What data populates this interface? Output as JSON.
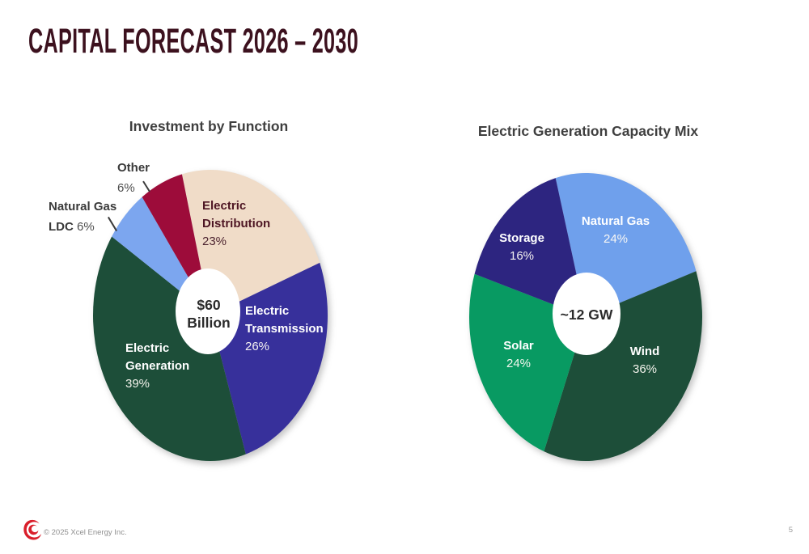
{
  "title": "CAPITAL FORECAST 2026 – 2030",
  "colors": {
    "title_maroon": "#3C111E",
    "chart_title_gray": "#3F3F3F",
    "logo_red": "#D91F2B"
  },
  "chart_data": [
    {
      "type": "pie",
      "title": "Investment by Function",
      "center_label": "$60 Billion",
      "center_label_lines": [
        "$60",
        "Billion"
      ],
      "start_angle_deg": -14,
      "legend_position": "labels-on-chart",
      "slices": [
        {
          "label": "Electric Distribution",
          "label_lines": [
            "Electric",
            "Distribution"
          ],
          "pct": 23,
          "pct_label": "23%",
          "color": "#F0DCC8"
        },
        {
          "label": "Electric Transmission",
          "label_lines": [
            "Electric",
            "Transmission"
          ],
          "pct": 26,
          "pct_label": "26%",
          "color": "#37309B"
        },
        {
          "label": "Electric Generation",
          "label_lines": [
            "Electric",
            "Generation"
          ],
          "pct": 39,
          "pct_label": "39%",
          "color": "#1D4E39"
        },
        {
          "label": "Natural Gas LDC",
          "label_lines": [
            "Natural Gas",
            "LDC"
          ],
          "pct": 6,
          "pct_label": "6%",
          "color": "#7CA6EF"
        },
        {
          "label": "Other",
          "label_lines": [
            "Other"
          ],
          "pct": 6,
          "pct_label": "6%",
          "color": "#9D0C3A"
        }
      ]
    },
    {
      "type": "pie",
      "title": "Electric Generation Capacity Mix",
      "center_label": "~12 GW",
      "start_angle_deg": -15,
      "legend_position": "labels-on-chart",
      "slices": [
        {
          "label": "Natural Gas",
          "pct": 24,
          "pct_label": "24%",
          "color": "#6FA0EC"
        },
        {
          "label": "Wind",
          "pct": 36,
          "pct_label": "36%",
          "color": "#1D4E39"
        },
        {
          "label": "Solar",
          "pct": 24,
          "pct_label": "24%",
          "color": "#089A62"
        },
        {
          "label": "Storage",
          "pct": 16,
          "pct_label": "16%",
          "color": "#2D2580"
        }
      ]
    }
  ],
  "footer": {
    "copyright": "© 2025 Xcel Energy Inc.",
    "page_number": "5"
  }
}
